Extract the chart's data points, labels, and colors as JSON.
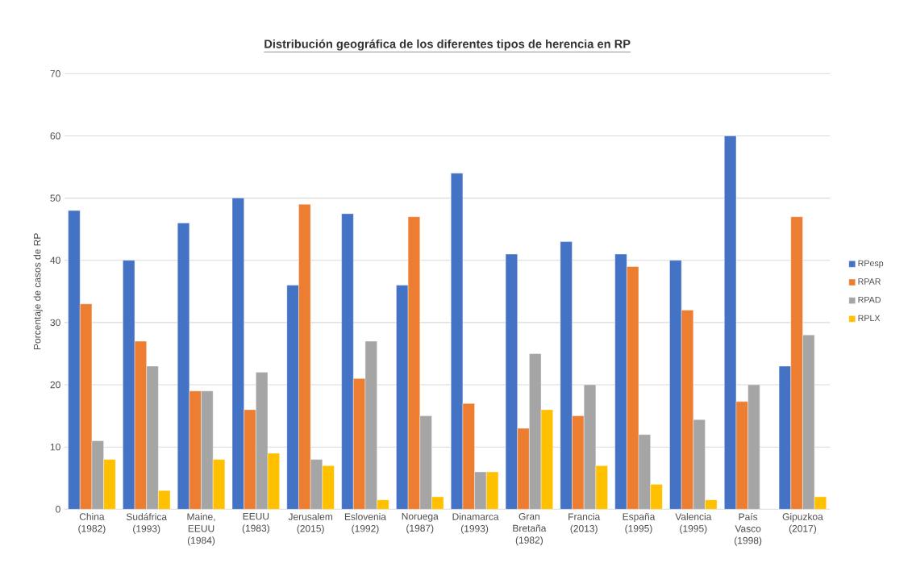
{
  "chart_data": {
    "type": "bar",
    "title": "**Distribución geográfica de los diferentes tipos de herencia en RP**",
    "ylabel": "Porcentaje de casos de RP",
    "categories": [
      "China (1982)",
      "Sudáfrica (1993)",
      "Maine, EEUU (1984)",
      "EEUU (1983)",
      "Jerusalem (2015)",
      "Eslovenia (1992)",
      "Noruega (1987)",
      "Dinamarca (1993)",
      "Gran Bretaña (1982)",
      "Francia (2013)",
      "España (1995)",
      "Valencia (1995)",
      "País Vasco (1998)",
      "Gipuzkoa (2017)"
    ],
    "series": [
      {
        "name": "RPesp",
        "color": "#4472c4",
        "values": [
          48,
          40,
          46,
          50,
          36,
          47.5,
          36,
          54,
          41,
          43,
          41,
          40,
          60,
          23
        ]
      },
      {
        "name": "RPAR",
        "color": "#ed7d31",
        "values": [
          33,
          27,
          19,
          16,
          49,
          21,
          47,
          17,
          13,
          15,
          39,
          32,
          17.3,
          47
        ]
      },
      {
        "name": "RPAD",
        "color": "#a5a5a5",
        "values": [
          11,
          23,
          19,
          22,
          8,
          27,
          15,
          6,
          25,
          20,
          12,
          14.4,
          20,
          28
        ]
      },
      {
        "name": "RPLX",
        "color": "#ffc000",
        "values": [
          8,
          3,
          8,
          9,
          7,
          1.5,
          2,
          6,
          16,
          7,
          4,
          1.5,
          null,
          2
        ]
      }
    ],
    "ylim": [
      0,
      70
    ],
    "yticks": [
      0,
      10,
      20,
      30,
      40,
      50,
      60,
      70
    ],
    "grid": "y",
    "legend": "right"
  }
}
